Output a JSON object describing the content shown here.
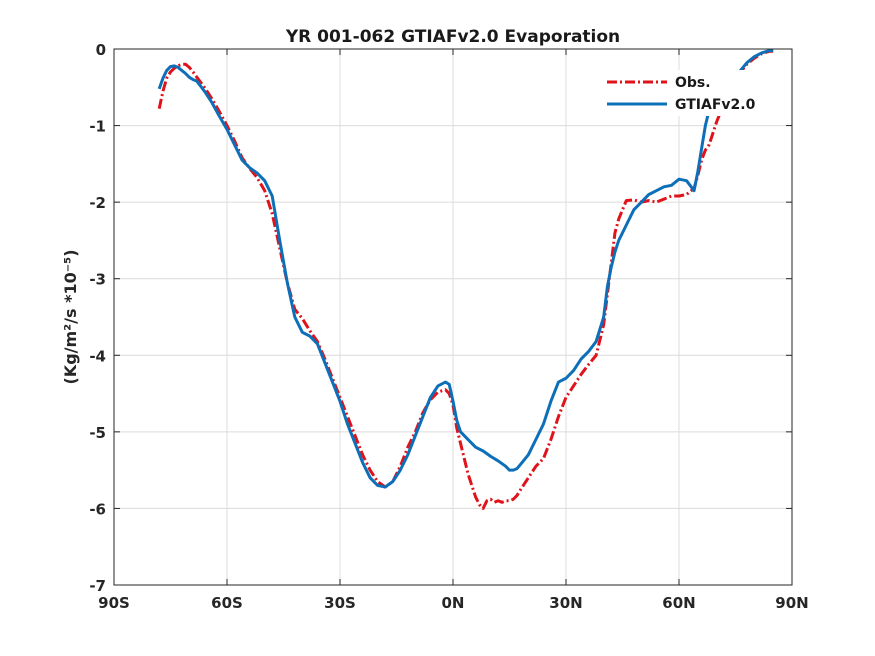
{
  "chart_data": {
    "type": "line",
    "title": "YR 001-062 GTIAFv2.0 Evaporation",
    "xlabel": "",
    "ylabel": "(Kg/m²/s *10⁻⁵)",
    "xlim": [
      -90,
      90
    ],
    "ylim": [
      -7,
      0
    ],
    "x_ticks": [
      {
        "value": -90,
        "label": "90S"
      },
      {
        "value": -60,
        "label": "60S"
      },
      {
        "value": -30,
        "label": "30S"
      },
      {
        "value": 0,
        "label": "0N"
      },
      {
        "value": 30,
        "label": "30N"
      },
      {
        "value": 60,
        "label": "60N"
      },
      {
        "value": 90,
        "label": "90N"
      }
    ],
    "y_ticks": [
      {
        "value": 0,
        "label": "0"
      },
      {
        "value": -1,
        "label": "-1"
      },
      {
        "value": -2,
        "label": "-2"
      },
      {
        "value": -3,
        "label": "-3"
      },
      {
        "value": -4,
        "label": "-4"
      },
      {
        "value": -5,
        "label": "-5"
      },
      {
        "value": -6,
        "label": "-6"
      },
      {
        "value": -7,
        "label": "-7"
      }
    ],
    "grid": true,
    "legend": "top-right",
    "series": [
      {
        "name": "Obs.",
        "color": "#e0131a",
        "dash": "dash-dot",
        "x": [
          -78,
          -77,
          -76,
          -75,
          -74,
          -73,
          -72,
          -71,
          -70,
          -69,
          -68,
          -66,
          -64,
          -62,
          -60,
          -58,
          -56,
          -54,
          -52,
          -50,
          -48,
          -46,
          -44,
          -42,
          -40,
          -38,
          -36,
          -34,
          -32,
          -30,
          -28,
          -26,
          -24,
          -22,
          -20,
          -18,
          -16,
          -14,
          -12,
          -10,
          -8,
          -6,
          -4,
          -2,
          -1,
          0,
          1,
          2,
          3,
          4,
          5,
          6,
          7,
          8,
          9,
          10,
          11,
          12,
          13,
          14,
          15,
          16,
          17,
          18,
          20,
          22,
          24,
          26,
          28,
          30,
          32,
          34,
          36,
          38,
          40,
          41,
          42,
          43,
          44,
          46,
          48,
          50,
          52,
          54,
          56,
          58,
          60,
          62,
          64,
          65,
          66,
          67,
          68,
          70,
          72,
          74,
          76,
          78,
          80,
          82,
          84,
          85
        ],
        "y": [
          -0.78,
          -0.55,
          -0.38,
          -0.3,
          -0.25,
          -0.22,
          -0.2,
          -0.2,
          -0.24,
          -0.3,
          -0.37,
          -0.5,
          -0.65,
          -0.82,
          -1.0,
          -1.2,
          -1.42,
          -1.56,
          -1.68,
          -1.85,
          -2.15,
          -2.6,
          -3.05,
          -3.4,
          -3.52,
          -3.68,
          -3.82,
          -4.05,
          -4.3,
          -4.55,
          -4.8,
          -5.05,
          -5.3,
          -5.5,
          -5.65,
          -5.72,
          -5.65,
          -5.45,
          -5.2,
          -5.0,
          -4.75,
          -4.58,
          -4.48,
          -4.45,
          -4.5,
          -4.65,
          -4.95,
          -5.15,
          -5.35,
          -5.55,
          -5.7,
          -5.85,
          -5.95,
          -6.0,
          -5.9,
          -5.88,
          -5.92,
          -5.9,
          -5.92,
          -5.9,
          -5.9,
          -5.88,
          -5.83,
          -5.75,
          -5.6,
          -5.45,
          -5.35,
          -5.1,
          -4.8,
          -4.55,
          -4.4,
          -4.25,
          -4.12,
          -4.0,
          -3.6,
          -3.2,
          -2.8,
          -2.4,
          -2.22,
          -1.98,
          -1.97,
          -2.0,
          -1.98,
          -2.0,
          -1.96,
          -1.92,
          -1.92,
          -1.9,
          -1.82,
          -1.65,
          -1.45,
          -1.32,
          -1.25,
          -0.95,
          -0.7,
          -0.5,
          -0.32,
          -0.2,
          -0.12,
          -0.06,
          -0.03,
          -0.03
        ]
      },
      {
        "name": "GTIAFv2.0",
        "color": "#0d6fb8",
        "dash": "solid",
        "x": [
          -78,
          -77,
          -76,
          -75,
          -74,
          -73,
          -72,
          -71,
          -70,
          -69,
          -68,
          -66,
          -64,
          -62,
          -60,
          -58,
          -56,
          -54,
          -52,
          -50,
          -48,
          -46,
          -44,
          -42,
          -40,
          -38,
          -36,
          -34,
          -32,
          -30,
          -28,
          -26,
          -24,
          -22,
          -20,
          -18,
          -16,
          -14,
          -12,
          -10,
          -8,
          -6,
          -4,
          -2,
          -1,
          0,
          1,
          2,
          3,
          4,
          6,
          8,
          10,
          12,
          14,
          15,
          16,
          17,
          18,
          20,
          22,
          24,
          26,
          28,
          30,
          32,
          34,
          36,
          38,
          40,
          41,
          42,
          43,
          44,
          46,
          48,
          50,
          52,
          54,
          56,
          58,
          60,
          62,
          64,
          65,
          66,
          67,
          68,
          70,
          72,
          74,
          76,
          78,
          80,
          82,
          84,
          85
        ],
        "y": [
          -0.52,
          -0.38,
          -0.28,
          -0.23,
          -0.22,
          -0.24,
          -0.28,
          -0.32,
          -0.37,
          -0.4,
          -0.42,
          -0.55,
          -0.7,
          -0.88,
          -1.05,
          -1.25,
          -1.45,
          -1.55,
          -1.62,
          -1.72,
          -1.92,
          -2.5,
          -3.05,
          -3.5,
          -3.7,
          -3.75,
          -3.85,
          -4.1,
          -4.35,
          -4.6,
          -4.9,
          -5.15,
          -5.4,
          -5.6,
          -5.7,
          -5.72,
          -5.65,
          -5.5,
          -5.3,
          -5.05,
          -4.8,
          -4.55,
          -4.4,
          -4.35,
          -4.38,
          -4.6,
          -4.85,
          -5.0,
          -5.05,
          -5.1,
          -5.2,
          -5.25,
          -5.32,
          -5.38,
          -5.45,
          -5.5,
          -5.5,
          -5.48,
          -5.42,
          -5.3,
          -5.1,
          -4.9,
          -4.6,
          -4.35,
          -4.3,
          -4.2,
          -4.05,
          -3.95,
          -3.82,
          -3.5,
          -3.1,
          -2.85,
          -2.65,
          -2.5,
          -2.3,
          -2.1,
          -2.0,
          -1.9,
          -1.85,
          -1.8,
          -1.78,
          -1.7,
          -1.72,
          -1.85,
          -1.6,
          -1.3,
          -1.0,
          -0.8,
          -0.72,
          -0.6,
          -0.45,
          -0.3,
          -0.18,
          -0.1,
          -0.05,
          -0.02,
          -0.02
        ]
      }
    ]
  }
}
